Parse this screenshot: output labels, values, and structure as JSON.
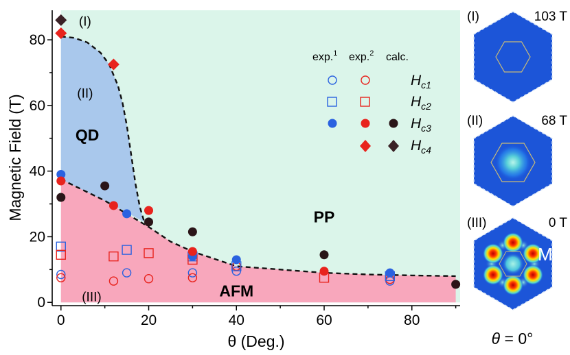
{
  "chart_data": {
    "type": "scatter",
    "xlabel": "θ (Deg.)",
    "ylabel": "Magnetic Field (T)",
    "xlim": [
      -2,
      91
    ],
    "ylim": [
      -1,
      89
    ],
    "xticks": [
      "0",
      "20",
      "40",
      "60",
      "80"
    ],
    "xtick_values": [
      0,
      20,
      40,
      60,
      80
    ],
    "yticks": [
      "0",
      "20",
      "40",
      "60",
      "80"
    ],
    "ytick_values": [
      0,
      20,
      40,
      60,
      80
    ],
    "regions": [
      {
        "name": "PP",
        "label": "PP",
        "at": [
          60,
          26
        ],
        "color": "#dbf5ea"
      },
      {
        "name": "QD",
        "label": "QD",
        "at": [
          6,
          51
        ],
        "color": "#a9c8ec"
      },
      {
        "name": "AFM",
        "label": "AFM",
        "at": [
          40,
          3.5
        ],
        "color": "#f8a7bc"
      }
    ],
    "region_markers": [
      {
        "label": "(I)",
        "at": [
          5.5,
          86
        ]
      },
      {
        "label": "(II)",
        "at": [
          5.5,
          64
        ]
      },
      {
        "label": "(III)",
        "at": [
          7,
          2
        ]
      }
    ],
    "boundaries": {
      "qd_upper": [
        [
          0,
          81
        ],
        [
          3,
          80.6
        ],
        [
          6,
          79.2
        ],
        [
          9,
          76.1
        ],
        [
          11,
          72.5
        ],
        [
          13,
          66
        ],
        [
          14,
          61
        ],
        [
          15,
          54
        ],
        [
          16,
          45
        ],
        [
          17,
          36
        ],
        [
          18,
          29
        ],
        [
          19,
          24.5
        ]
      ],
      "afm_upper": [
        [
          0,
          37.5
        ],
        [
          10,
          31
        ],
        [
          20,
          23
        ],
        [
          25,
          18.5
        ],
        [
          30,
          15.5
        ],
        [
          40,
          11
        ],
        [
          50,
          10
        ],
        [
          60,
          9
        ],
        [
          70,
          8.5
        ],
        [
          80,
          8.2
        ],
        [
          90,
          8
        ]
      ]
    },
    "legend": {
      "headers": [
        "exp.",
        "exp.",
        "calc."
      ],
      "header_sup": [
        "1",
        "2"
      ],
      "rows": [
        {
          "symbol": "H",
          "sub": "c1"
        },
        {
          "symbol": "H",
          "sub": "c2"
        },
        {
          "symbol": "H",
          "sub": "c3"
        },
        {
          "symbol": "H",
          "sub": "c4"
        }
      ]
    },
    "series": [
      {
        "name": "Hc1 exp.1",
        "marker": "open-circle",
        "color": "#2a62e0",
        "points": [
          [
            0,
            8.5
          ],
          [
            15,
            9
          ],
          [
            30,
            9
          ],
          [
            40,
            9.5
          ],
          [
            75,
            6.5
          ]
        ]
      },
      {
        "name": "Hc1 exp.2",
        "marker": "open-circle",
        "color": "#e8231d",
        "points": [
          [
            0,
            7.5
          ],
          [
            12,
            6.5
          ],
          [
            20,
            7.2
          ],
          [
            30,
            7.5
          ],
          [
            40,
            11
          ],
          [
            75,
            7
          ]
        ]
      },
      {
        "name": "Hc2 exp.1",
        "marker": "open-square",
        "color": "#2a62e0",
        "points": [
          [
            0,
            17
          ],
          [
            15,
            16
          ],
          [
            30,
            14
          ],
          [
            40,
            11
          ],
          [
            75,
            8
          ]
        ]
      },
      {
        "name": "Hc2 exp.2",
        "marker": "open-square",
        "color": "#e8231d",
        "points": [
          [
            0,
            14.5
          ],
          [
            12,
            14
          ],
          [
            20,
            15
          ],
          [
            30,
            13
          ],
          [
            60,
            7.5
          ]
        ]
      },
      {
        "name": "Hc3 exp.1",
        "marker": "filled-circle",
        "color": "#2a62e0",
        "points": [
          [
            0,
            39
          ],
          [
            15,
            27
          ],
          [
            30,
            14
          ],
          [
            40,
            13
          ],
          [
            75,
            9
          ]
        ]
      },
      {
        "name": "Hc3 exp.2",
        "marker": "filled-circle",
        "color": "#e8231d",
        "points": [
          [
            0,
            37
          ],
          [
            12,
            29.5
          ],
          [
            20,
            28
          ],
          [
            30,
            15.5
          ],
          [
            60,
            9.5
          ]
        ]
      },
      {
        "name": "Hc3 calc.",
        "marker": "filled-circle",
        "color": "#2a1518",
        "points": [
          [
            0,
            32
          ],
          [
            10,
            35.5
          ],
          [
            20,
            24.5
          ],
          [
            30,
            21.5
          ],
          [
            60,
            14.5
          ],
          [
            90,
            5.5
          ]
        ]
      },
      {
        "name": "Hc4 exp.2",
        "marker": "filled-diamond",
        "color": "#e8231d",
        "points": [
          [
            0,
            82
          ],
          [
            12,
            72.5
          ]
        ]
      },
      {
        "name": "Hc4 calc.",
        "marker": "filled-diamond",
        "color": "#3a2226",
        "points": [
          [
            0,
            86
          ]
        ]
      }
    ]
  },
  "panels": [
    {
      "roman": "(I)",
      "field": "103 T"
    },
    {
      "roman": "(II)",
      "field": "68 T"
    },
    {
      "roman": "(III)",
      "field": "0 T",
      "extra": "M"
    }
  ],
  "panel_caption": {
    "theta": "θ",
    "rest": " = 0°"
  }
}
